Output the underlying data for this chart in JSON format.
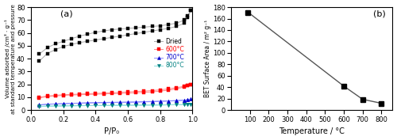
{
  "panel_a_label": "(a)",
  "panel_b_label": "(b)",
  "xlabel_a": "P/P₀",
  "ylabel_a": "Volume adsorbed /cm³ · g⁻¹\nat standard temperature and pressure",
  "xlabel_b": "Temperature / °C",
  "ylabel_b": "BET Surface Area / m² g⁻¹",
  "ylim_a": [
    0,
    80
  ],
  "xlim_a": [
    0.0,
    1.0
  ],
  "ylim_b": [
    0,
    180
  ],
  "xlim_b": [
    0,
    860
  ],
  "yticks_a": [
    0,
    10,
    20,
    30,
    40,
    50,
    60,
    70,
    80
  ],
  "xticks_a": [
    0.0,
    0.2,
    0.4,
    0.6,
    0.8,
    1.0
  ],
  "yticks_b": [
    0,
    20,
    40,
    60,
    80,
    100,
    120,
    140,
    160,
    180
  ],
  "xticks_b": [
    100,
    200,
    300,
    400,
    500,
    600,
    700,
    800
  ],
  "series": [
    {
      "label": "Dried",
      "color": "#000000",
      "line_color": "#aaaaaa",
      "marker": "s",
      "markersize": 3.5,
      "adsorption_x": [
        0.05,
        0.1,
        0.15,
        0.2,
        0.25,
        0.3,
        0.35,
        0.4,
        0.45,
        0.5,
        0.55,
        0.6,
        0.65,
        0.7,
        0.75,
        0.8,
        0.85,
        0.9,
        0.95,
        0.97,
        0.99
      ],
      "adsorption_y": [
        38.0,
        44.0,
        47.0,
        49.5,
        51.0,
        52.5,
        53.5,
        54.5,
        55.5,
        56.5,
        57.5,
        58.5,
        59.5,
        60.5,
        61.5,
        62.5,
        63.5,
        65.0,
        67.5,
        72.0,
        77.5
      ],
      "desorption_x": [
        0.99,
        0.97,
        0.95,
        0.9,
        0.85,
        0.8,
        0.75,
        0.7,
        0.65,
        0.6,
        0.55,
        0.5,
        0.45,
        0.4,
        0.35,
        0.3,
        0.25,
        0.2,
        0.15,
        0.1,
        0.05
      ],
      "desorption_y": [
        77.5,
        73.5,
        70.0,
        67.5,
        66.5,
        65.5,
        65.0,
        64.5,
        64.0,
        63.5,
        63.0,
        62.5,
        61.5,
        60.5,
        59.0,
        57.5,
        55.5,
        53.5,
        51.5,
        48.5,
        43.5
      ]
    },
    {
      "label": "600°C",
      "color": "#ff0000",
      "line_color": "#ff8888",
      "marker": "s",
      "markersize": 3.0,
      "adsorption_x": [
        0.05,
        0.1,
        0.15,
        0.2,
        0.25,
        0.3,
        0.35,
        0.4,
        0.45,
        0.5,
        0.55,
        0.6,
        0.65,
        0.7,
        0.75,
        0.8,
        0.85,
        0.9,
        0.95,
        0.97,
        0.99
      ],
      "adsorption_y": [
        9.5,
        10.5,
        11.0,
        11.5,
        11.8,
        12.0,
        12.2,
        12.4,
        12.6,
        12.8,
        13.0,
        13.2,
        13.5,
        13.8,
        14.2,
        14.8,
        15.5,
        16.5,
        18.0,
        19.0,
        20.0
      ],
      "desorption_x": [
        0.99,
        0.97,
        0.95,
        0.9,
        0.85,
        0.8,
        0.75,
        0.7,
        0.65,
        0.6,
        0.55,
        0.5,
        0.45,
        0.4,
        0.35,
        0.3,
        0.25,
        0.2,
        0.15,
        0.1,
        0.05
      ],
      "desorption_y": [
        20.0,
        19.5,
        18.5,
        17.5,
        16.5,
        15.8,
        15.2,
        14.8,
        14.5,
        14.2,
        13.8,
        13.5,
        13.2,
        13.0,
        12.8,
        12.5,
        12.2,
        12.0,
        11.5,
        11.0,
        10.0
      ]
    },
    {
      "label": "700°C",
      "color": "#0000cc",
      "line_color": "#8888ff",
      "marker": "^",
      "markersize": 3.0,
      "adsorption_x": [
        0.05,
        0.1,
        0.15,
        0.2,
        0.25,
        0.3,
        0.35,
        0.4,
        0.45,
        0.5,
        0.55,
        0.6,
        0.65,
        0.7,
        0.75,
        0.8,
        0.85,
        0.9,
        0.95,
        0.97,
        0.99
      ],
      "adsorption_y": [
        4.0,
        4.5,
        4.8,
        5.0,
        5.2,
        5.4,
        5.6,
        5.7,
        5.8,
        5.9,
        6.0,
        6.1,
        6.2,
        6.4,
        6.6,
        6.8,
        7.0,
        7.3,
        7.7,
        8.0,
        8.5
      ],
      "desorption_x": [
        0.99,
        0.97,
        0.95,
        0.9,
        0.85,
        0.8,
        0.75,
        0.7,
        0.65,
        0.6,
        0.55,
        0.5,
        0.45,
        0.4,
        0.35,
        0.3,
        0.25,
        0.2,
        0.15,
        0.1,
        0.05
      ],
      "desorption_y": [
        8.5,
        8.2,
        7.8,
        7.5,
        7.2,
        7.0,
        6.8,
        6.6,
        6.4,
        6.3,
        6.2,
        6.1,
        6.0,
        5.9,
        5.7,
        5.5,
        5.3,
        5.1,
        4.9,
        4.6,
        4.2
      ]
    },
    {
      "label": "800°C",
      "color": "#008080",
      "line_color": "#88dddd",
      "marker": "v",
      "markersize": 3.0,
      "adsorption_x": [
        0.05,
        0.1,
        0.15,
        0.2,
        0.25,
        0.3,
        0.35,
        0.4,
        0.45,
        0.5,
        0.55,
        0.6,
        0.65,
        0.7,
        0.75,
        0.8,
        0.85,
        0.9,
        0.95,
        0.97,
        0.99
      ],
      "adsorption_y": [
        3.0,
        3.2,
        3.3,
        3.4,
        3.5,
        3.5,
        3.6,
        3.6,
        3.7,
        3.7,
        3.8,
        3.8,
        3.9,
        3.9,
        4.0,
        4.0,
        4.1,
        4.2,
        4.3,
        4.4,
        4.5
      ],
      "desorption_x": [
        0.99,
        0.97,
        0.95,
        0.9,
        0.85,
        0.8,
        0.75,
        0.7,
        0.65,
        0.6,
        0.55,
        0.5,
        0.45,
        0.4,
        0.35,
        0.3,
        0.25,
        0.2,
        0.15,
        0.1,
        0.05
      ],
      "desorption_y": [
        4.5,
        4.4,
        4.3,
        4.2,
        4.1,
        4.0,
        3.9,
        3.9,
        3.8,
        3.8,
        3.7,
        3.7,
        3.6,
        3.6,
        3.5,
        3.4,
        3.3,
        3.2,
        3.1,
        3.0,
        2.8
      ]
    }
  ],
  "bet_temperatures": [
    90,
    600,
    700,
    800
  ],
  "bet_values": [
    171,
    42,
    19,
    12
  ],
  "bet_color": "#000000",
  "bet_marker": "s",
  "bet_line_color": "#555555"
}
